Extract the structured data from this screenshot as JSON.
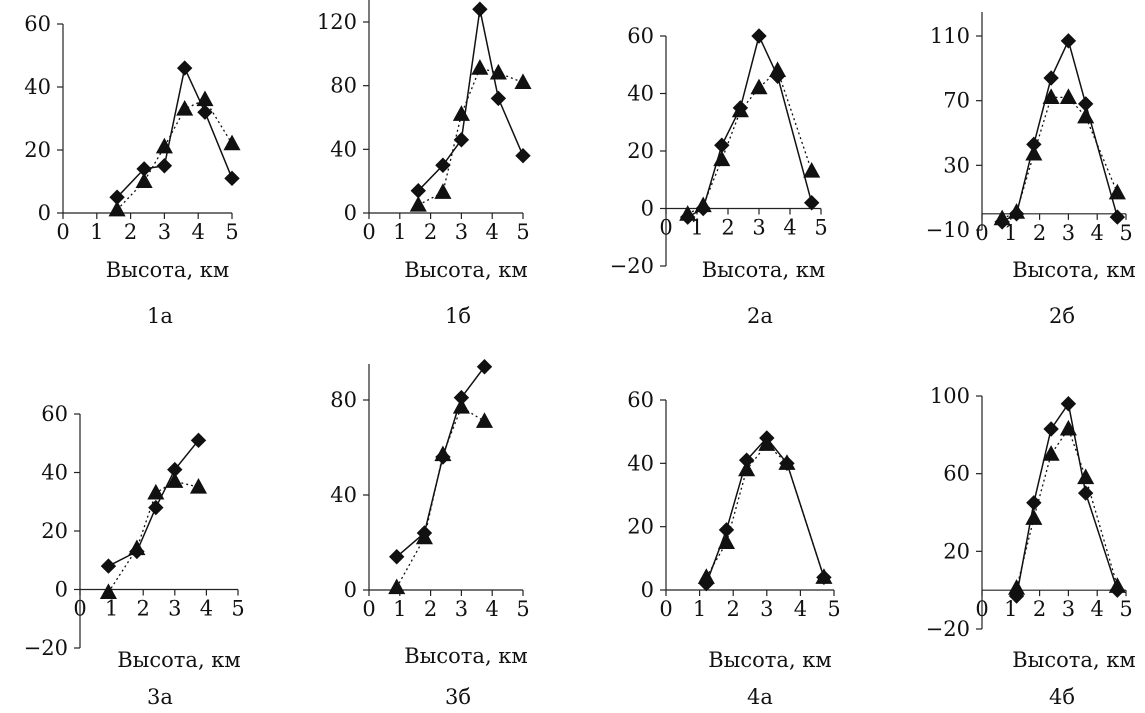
{
  "chart_data": [
    {
      "type": "line",
      "caption": "1а",
      "xlabel": "Высота, км",
      "xlim": [
        0,
        5
      ],
      "ylim": [
        0,
        60
      ],
      "xticks": [
        "0",
        "1",
        "2",
        "3",
        "4",
        "5"
      ],
      "yticks": [
        "0",
        "20",
        "40",
        "60"
      ],
      "series": [
        {
          "marker": "diamond",
          "line": "solid",
          "x": [
            1.6,
            2.4,
            3.0,
            3.6,
            4.2,
            5.0
          ],
          "y": [
            5,
            14,
            15,
            46,
            32,
            11
          ]
        },
        {
          "marker": "triangle",
          "line": "dotted",
          "x": [
            1.6,
            2.4,
            3.0,
            3.6,
            4.2,
            5.0
          ],
          "y": [
            1,
            10,
            21,
            33,
            36,
            22
          ]
        }
      ]
    },
    {
      "type": "line",
      "caption": "1б",
      "xlabel": "Высота, км",
      "xlim": [
        0,
        5
      ],
      "ylim": [
        0,
        140
      ],
      "xticks": [
        "0",
        "1",
        "2",
        "3",
        "4",
        "5"
      ],
      "yticks": [
        "0",
        "40",
        "80",
        "120"
      ],
      "series": [
        {
          "marker": "diamond",
          "line": "solid",
          "x": [
            1.6,
            2.4,
            3.0,
            3.6,
            4.2,
            5.0
          ],
          "y": [
            14,
            30,
            46,
            128,
            72,
            36
          ]
        },
        {
          "marker": "triangle",
          "line": "dotted",
          "x": [
            1.6,
            2.4,
            3.0,
            3.6,
            4.2,
            5.0
          ],
          "y": [
            5,
            13,
            62,
            91,
            88,
            82
          ]
        }
      ]
    },
    {
      "type": "line",
      "caption": "2а",
      "xlabel": "Высота, км",
      "xlim": [
        0,
        5
      ],
      "ylim": [
        -20,
        60
      ],
      "xticks": [
        "0",
        "1",
        "2",
        "3",
        "4",
        "5"
      ],
      "yticks": [
        "−20",
        "0",
        "20",
        "40",
        "60"
      ],
      "series": [
        {
          "marker": "diamond",
          "line": "solid",
          "x": [
            0.7,
            1.2,
            1.8,
            2.4,
            3.0,
            3.6,
            4.7
          ],
          "y": [
            -3,
            0,
            22,
            35,
            60,
            46,
            2
          ]
        },
        {
          "marker": "triangle",
          "line": "dotted",
          "x": [
            0.7,
            1.2,
            1.8,
            2.4,
            3.0,
            3.6,
            4.7
          ],
          "y": [
            -2,
            1,
            17,
            34,
            42,
            48,
            13
          ]
        }
      ]
    },
    {
      "type": "line",
      "caption": "2б",
      "xlabel": "Высота, км",
      "xlim": [
        0,
        5
      ],
      "ylim": [
        -10,
        130
      ],
      "xticks": [
        "0",
        "1",
        "2",
        "3",
        "4",
        "5"
      ],
      "yticks": [
        "−10",
        "30",
        "70",
        "110"
      ],
      "series": [
        {
          "marker": "diamond",
          "line": "solid",
          "x": [
            0.7,
            1.2,
            1.8,
            2.4,
            3.0,
            3.6,
            4.7
          ],
          "y": [
            -5,
            0,
            43,
            84,
            107,
            68,
            -2
          ]
        },
        {
          "marker": "triangle",
          "line": "dotted",
          "x": [
            0.7,
            1.2,
            1.8,
            2.4,
            3.0,
            3.6,
            4.7
          ],
          "y": [
            -3,
            1,
            37,
            72,
            72,
            60,
            13
          ]
        }
      ]
    },
    {
      "type": "line",
      "caption": "3а",
      "xlabel": "Высота, км",
      "xlim": [
        0,
        5
      ],
      "ylim": [
        -20,
        60
      ],
      "xticks": [
        "0",
        "1",
        "2",
        "3",
        "4",
        "5"
      ],
      "yticks": [
        "−20",
        "0",
        "20",
        "40",
        "60"
      ],
      "series": [
        {
          "marker": "diamond",
          "line": "solid",
          "x": [
            0.9,
            1.8,
            2.4,
            3.0,
            3.75
          ],
          "y": [
            8,
            13,
            28,
            41,
            51
          ]
        },
        {
          "marker": "triangle",
          "line": "dotted",
          "x": [
            0.9,
            1.8,
            2.4,
            3.0,
            3.75
          ],
          "y": [
            -1,
            14,
            33,
            37,
            35
          ]
        }
      ]
    },
    {
      "type": "line",
      "caption": "3б",
      "xlabel": "Высота, км",
      "xlim": [
        0,
        5
      ],
      "ylim": [
        0,
        100
      ],
      "xticks": [
        "0",
        "1",
        "2",
        "3",
        "4",
        "5"
      ],
      "yticks": [
        "0",
        "40",
        "80"
      ],
      "series": [
        {
          "marker": "diamond",
          "line": "solid",
          "x": [
            0.9,
            1.8,
            2.4,
            3.0,
            3.75
          ],
          "y": [
            14,
            24,
            56,
            81,
            94
          ]
        },
        {
          "marker": "triangle",
          "line": "dotted",
          "x": [
            0.9,
            1.8,
            2.4,
            3.0,
            3.75
          ],
          "y": [
            1,
            22,
            57,
            77,
            71
          ]
        }
      ]
    },
    {
      "type": "line",
      "caption": "4а",
      "xlabel": "Высота, км",
      "xlim": [
        0,
        5
      ],
      "ylim": [
        0,
        60
      ],
      "xticks": [
        "0",
        "1",
        "2",
        "3",
        "4",
        "5"
      ],
      "yticks": [
        "0",
        "20",
        "40",
        "60"
      ],
      "series": [
        {
          "marker": "diamond",
          "line": "solid",
          "x": [
            1.2,
            1.8,
            2.4,
            3.0,
            3.6,
            4.7
          ],
          "y": [
            2,
            19,
            41,
            48,
            40,
            4
          ]
        },
        {
          "marker": "triangle",
          "line": "dotted",
          "x": [
            1.2,
            1.8,
            2.4,
            3.0,
            3.6,
            4.7
          ],
          "y": [
            4,
            15,
            38,
            46,
            40,
            4
          ]
        }
      ]
    },
    {
      "type": "line",
      "caption": "4б",
      "xlabel": "Высота, км",
      "xlim": [
        0,
        5
      ],
      "ylim": [
        -20,
        100
      ],
      "xticks": [
        "0",
        "1",
        "2",
        "3",
        "4",
        "5"
      ],
      "yticks": [
        "−20",
        "20",
        "60",
        "100"
      ],
      "series": [
        {
          "marker": "diamond",
          "line": "solid",
          "x": [
            1.2,
            1.8,
            2.4,
            3.0,
            3.6,
            4.7
          ],
          "y": [
            -3,
            45,
            83,
            96,
            50,
            0
          ]
        },
        {
          "marker": "triangle",
          "line": "dotted",
          "x": [
            1.2,
            1.8,
            2.4,
            3.0,
            3.6,
            4.7
          ],
          "y": [
            1,
            37,
            70,
            83,
            58,
            2
          ]
        }
      ]
    }
  ]
}
